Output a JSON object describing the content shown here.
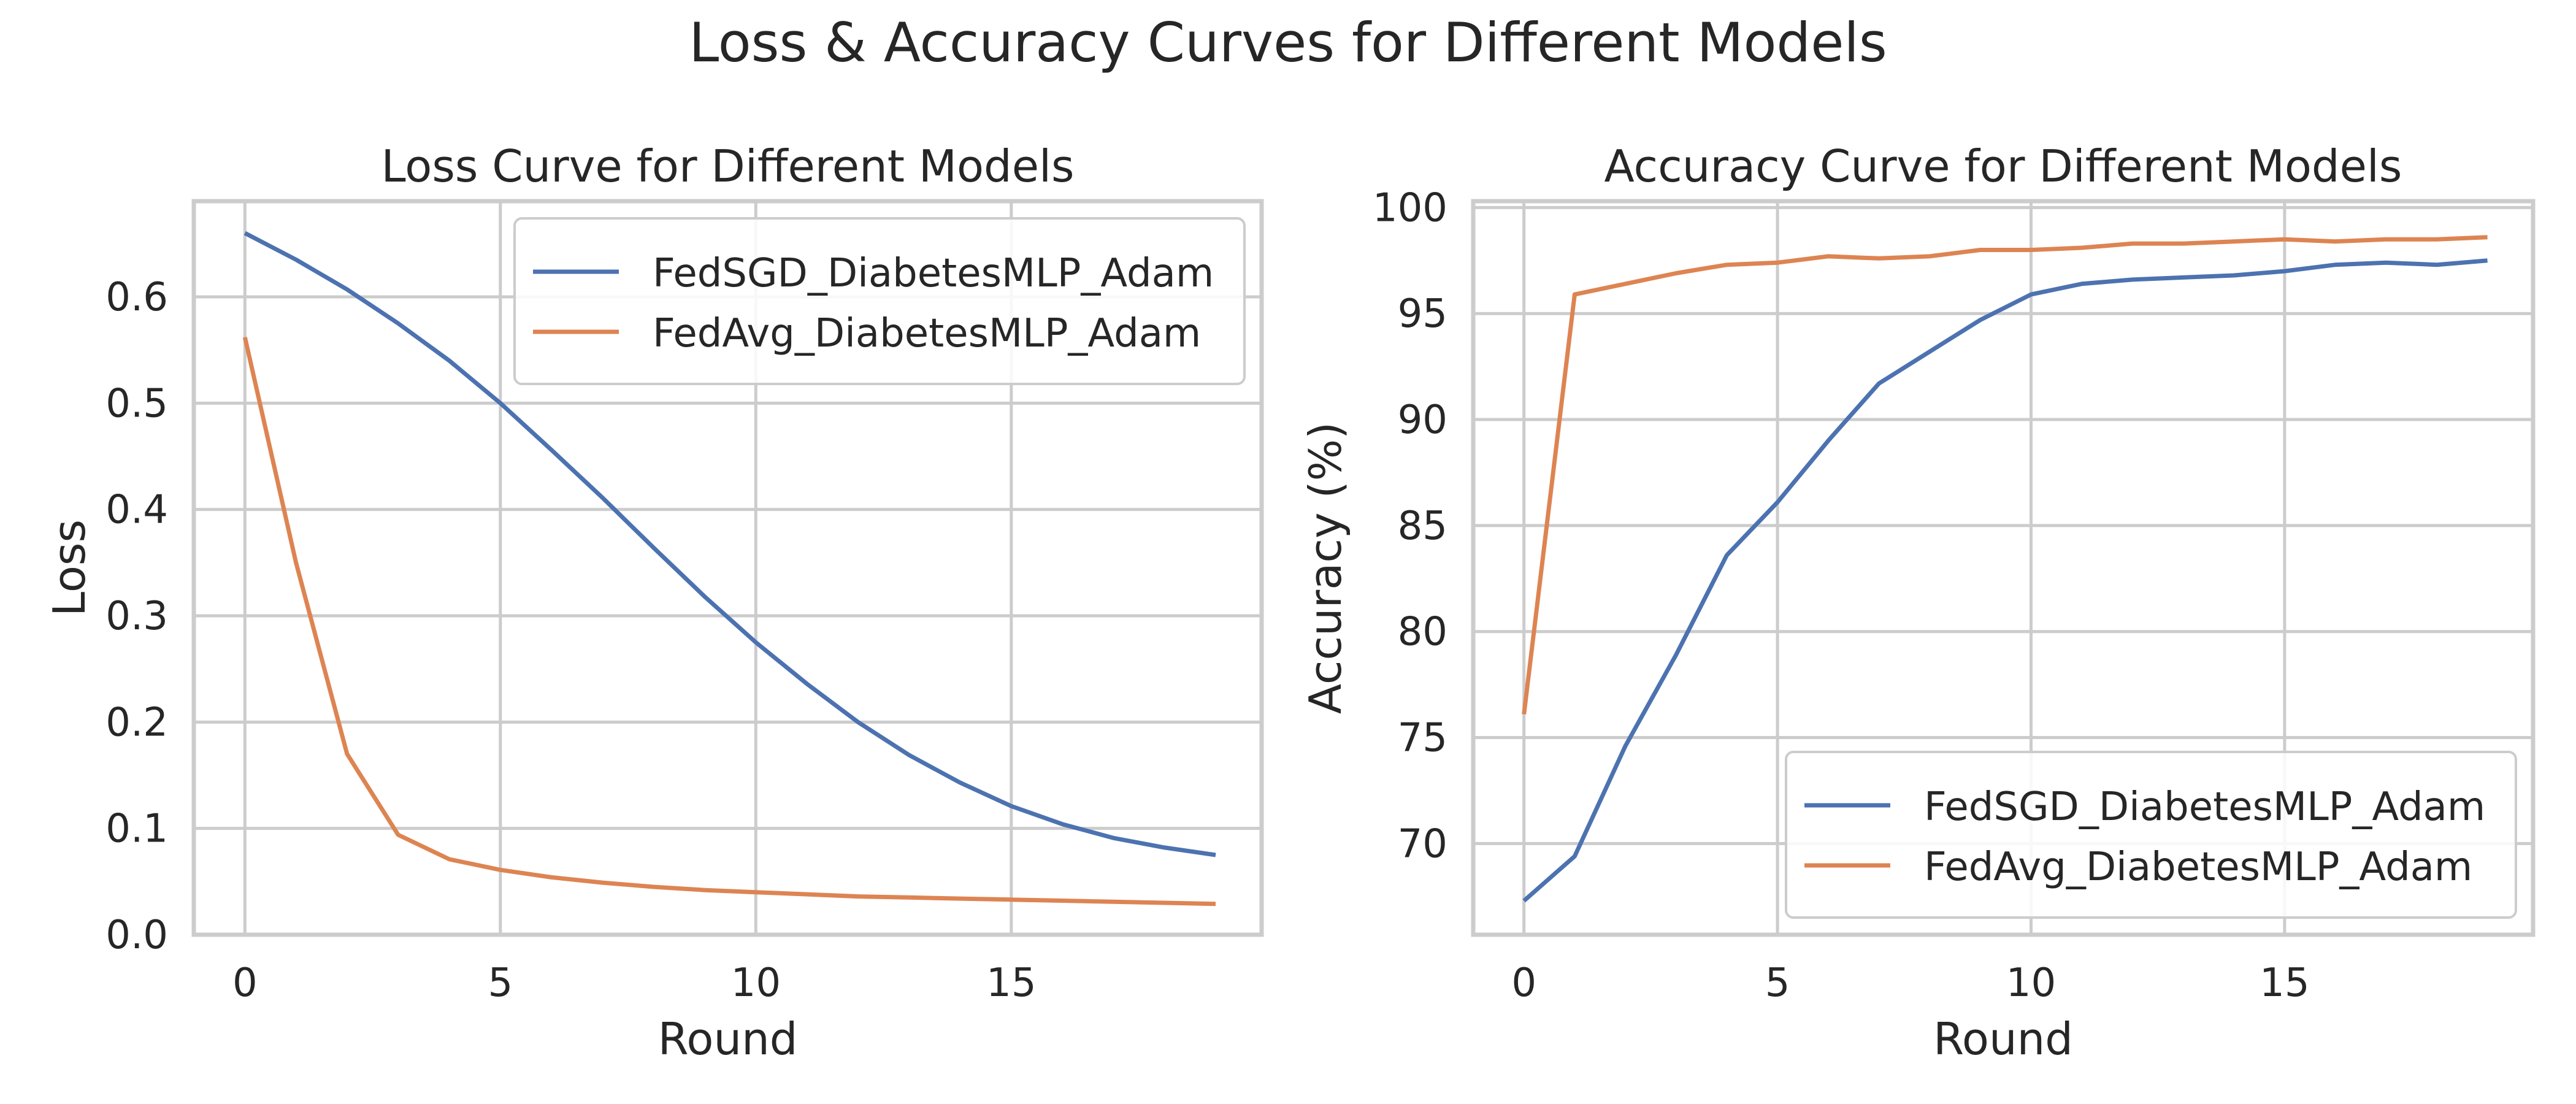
{
  "figure": {
    "title": "Loss & Accuracy Curves for Different Models"
  },
  "chart_data": [
    {
      "type": "line",
      "title": "Loss Curve for Different Models",
      "xlabel": "Round",
      "ylabel": "Loss",
      "xlim": [
        -1,
        19.9
      ],
      "ylim": [
        0.0,
        0.69
      ],
      "xticks": [
        0,
        5,
        10,
        15
      ],
      "yticks": [
        0.0,
        0.1,
        0.2,
        0.3,
        0.4,
        0.5,
        0.6
      ],
      "ytick_labels": [
        "0.0",
        "0.1",
        "0.2",
        "0.3",
        "0.4",
        "0.5",
        "0.6"
      ],
      "grid": true,
      "legend_position": "top-right",
      "x": [
        0,
        1,
        2,
        3,
        4,
        5,
        6,
        7,
        8,
        9,
        10,
        11,
        12,
        13,
        14,
        15,
        16,
        17,
        18,
        19
      ],
      "series": [
        {
          "name": "FedSGD_DiabetesMLP_Adam",
          "color": "#4C72B0",
          "values": [
            0.66,
            0.635,
            0.607,
            0.575,
            0.54,
            0.5,
            0.456,
            0.411,
            0.364,
            0.318,
            0.275,
            0.236,
            0.2,
            0.169,
            0.143,
            0.121,
            0.104,
            0.091,
            0.082,
            0.075
          ]
        },
        {
          "name": "FedAvg_DiabetesMLP_Adam",
          "color": "#DD8452",
          "values": [
            0.562,
            0.35,
            0.17,
            0.094,
            0.071,
            0.061,
            0.054,
            0.049,
            0.045,
            0.042,
            0.04,
            0.038,
            0.036,
            0.035,
            0.034,
            0.033,
            0.032,
            0.031,
            0.03,
            0.029
          ]
        }
      ]
    },
    {
      "type": "line",
      "title": "Accuracy Curve for Different Models",
      "xlabel": "Round",
      "ylabel": "Accuracy (%)",
      "xlim": [
        -1,
        19.9
      ],
      "ylim": [
        65.7,
        100.3
      ],
      "xticks": [
        0,
        5,
        10,
        15
      ],
      "yticks": [
        70,
        75,
        80,
        85,
        90,
        95,
        100
      ],
      "ytick_labels": [
        "70",
        "75",
        "80",
        "85",
        "90",
        "95",
        "100"
      ],
      "grid": true,
      "legend_position": "bottom-right",
      "x": [
        0,
        1,
        2,
        3,
        4,
        5,
        6,
        7,
        8,
        9,
        10,
        11,
        12,
        13,
        14,
        15,
        16,
        17,
        18,
        19
      ],
      "series": [
        {
          "name": "FedSGD_DiabetesMLP_Adam",
          "color": "#4C72B0",
          "values": [
            67.3,
            69.4,
            74.6,
            78.9,
            83.6,
            86.1,
            89.0,
            91.7,
            93.2,
            94.7,
            95.9,
            96.4,
            96.6,
            96.7,
            96.8,
            97.0,
            97.3,
            97.4,
            97.3,
            97.5
          ]
        },
        {
          "name": "FedAvg_DiabetesMLP_Adam",
          "color": "#DD8452",
          "values": [
            76.1,
            95.9,
            96.4,
            96.9,
            97.3,
            97.4,
            97.7,
            97.6,
            97.7,
            98.0,
            98.0,
            98.1,
            98.3,
            98.3,
            98.4,
            98.5,
            98.4,
            98.5,
            98.5,
            98.6
          ]
        }
      ]
    }
  ]
}
